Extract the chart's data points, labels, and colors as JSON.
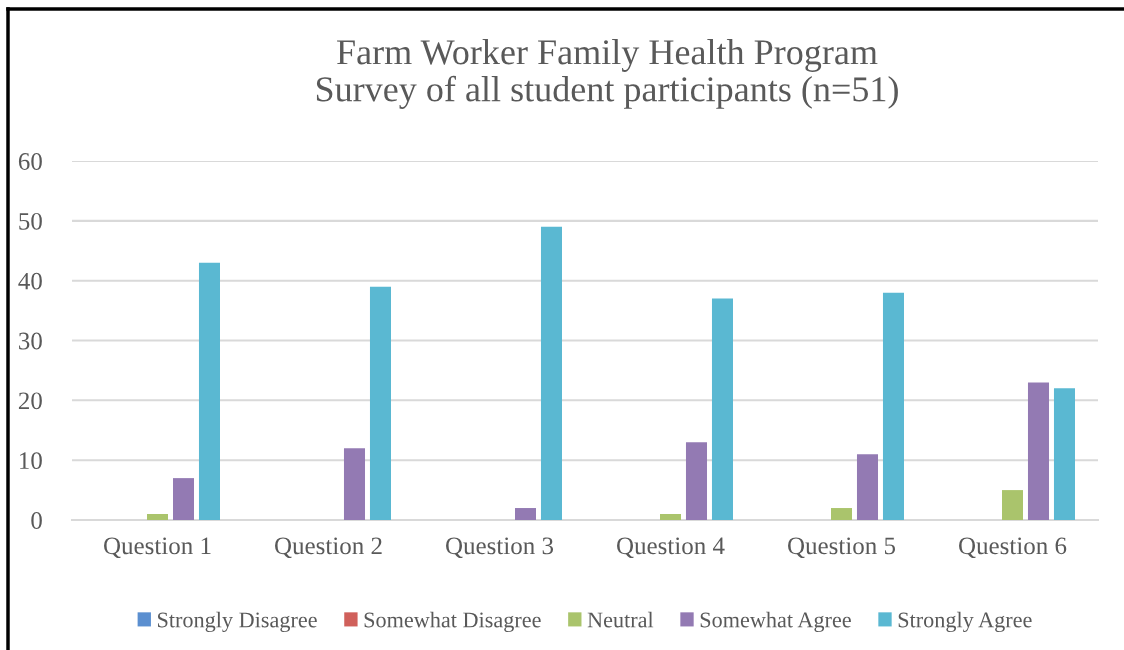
{
  "chart_data": {
    "type": "bar",
    "title": "Farm Worker Family Health Program\nSurvey of all student participants (n=51)",
    "categories": [
      "Question 1",
      "Question 2",
      "Question 3",
      "Question 4",
      "Question 5",
      "Question 6"
    ],
    "series": [
      {
        "name": "Strongly Disagree",
        "color": "#5b8fd0",
        "values": [
          0,
          0,
          0,
          0,
          0,
          0
        ]
      },
      {
        "name": "Somewhat Disagree",
        "color": "#d0605b",
        "values": [
          0,
          0,
          0,
          0,
          0,
          0
        ]
      },
      {
        "name": "Neutral",
        "color": "#aac46c",
        "values": [
          1,
          0,
          0,
          1,
          2,
          5
        ]
      },
      {
        "name": "Somewhat Agree",
        "color": "#937ab3",
        "values": [
          7,
          12,
          2,
          13,
          11,
          23
        ]
      },
      {
        "name": "Strongly Agree",
        "color": "#5ab8d2",
        "values": [
          43,
          39,
          49,
          37,
          38,
          22
        ]
      }
    ],
    "ylim": [
      0,
      60
    ],
    "yticks": [
      0,
      10,
      20,
      30,
      40,
      50,
      60
    ],
    "grid": "y",
    "legend": "bottom"
  }
}
